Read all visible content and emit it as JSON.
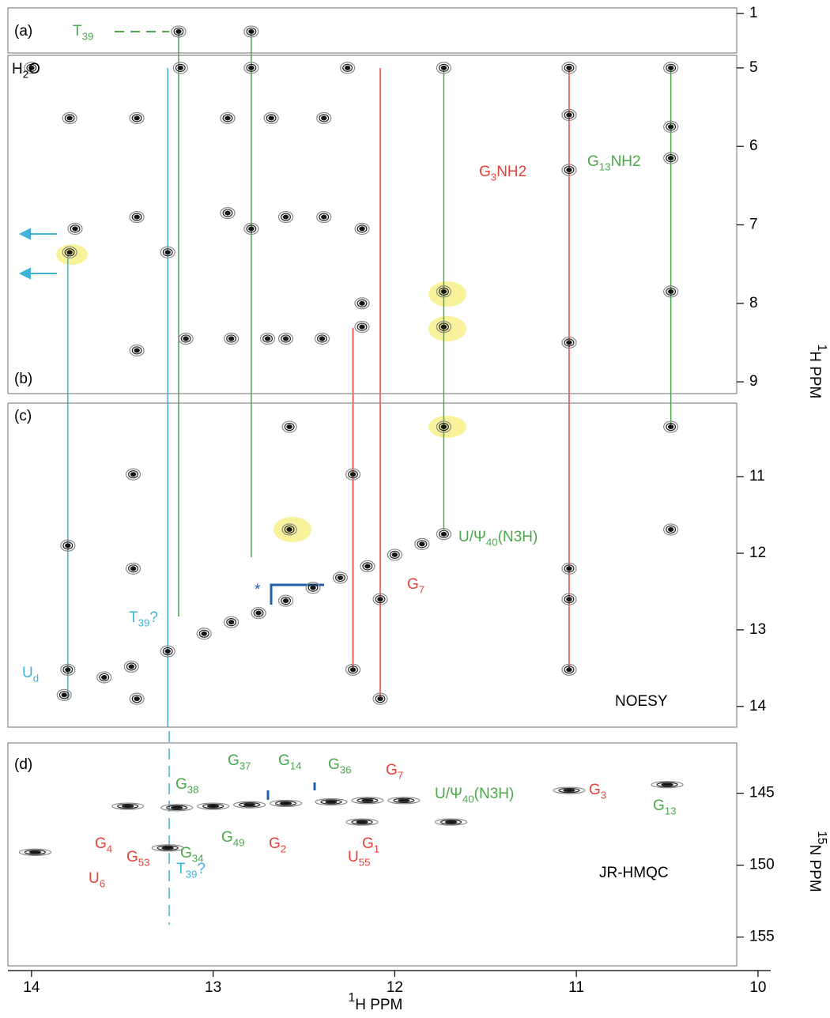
{
  "axes": {
    "x_title": {
      "sup": "1",
      "text": "H PPM"
    },
    "y1_title": {
      "sup": "1",
      "text": "H PPM"
    },
    "y2_title": {
      "sup": "15",
      "text": "N PPM"
    },
    "xlim": [
      14.13,
      9.93
    ],
    "xticks": [
      14,
      13,
      12,
      11,
      10
    ]
  },
  "panels": [
    {
      "type": "contour",
      "label": "(a)",
      "ylim": [
        0.9,
        1.7
      ],
      "yticks": [
        1
      ],
      "peaks": [
        [
          13.19,
          1.32
        ],
        [
          12.79,
          1.32
        ]
      ]
    },
    {
      "type": "contour",
      "label": "(b)",
      "ylim": [
        4.84,
        9.15
      ],
      "yticks": [
        5,
        6,
        7,
        8,
        9
      ],
      "peaks": [
        [
          14.0,
          5.0
        ],
        [
          13.18,
          5.0
        ],
        [
          12.79,
          5.0
        ],
        [
          12.26,
          5.0
        ],
        [
          11.73,
          5.0
        ],
        [
          11.04,
          5.0
        ],
        [
          10.48,
          5.0
        ],
        [
          13.79,
          5.64
        ],
        [
          13.42,
          5.64
        ],
        [
          12.92,
          5.64
        ],
        [
          12.68,
          5.64
        ],
        [
          12.39,
          5.64
        ],
        [
          11.04,
          5.6
        ],
        [
          10.48,
          5.75
        ],
        [
          11.04,
          6.3
        ],
        [
          10.48,
          6.15
        ],
        [
          13.76,
          7.05
        ],
        [
          13.42,
          6.9
        ],
        [
          12.92,
          6.85
        ],
        [
          12.79,
          7.05
        ],
        [
          12.6,
          6.9
        ],
        [
          12.39,
          6.9
        ],
        [
          12.18,
          7.05
        ],
        [
          13.79,
          7.35
        ],
        [
          13.25,
          7.35
        ],
        [
          11.73,
          7.85
        ],
        [
          10.48,
          7.85
        ],
        [
          11.73,
          8.3
        ],
        [
          12.18,
          8.0
        ],
        [
          12.18,
          8.3
        ],
        [
          13.42,
          8.6
        ],
        [
          13.15,
          8.45
        ],
        [
          12.9,
          8.45
        ],
        [
          12.7,
          8.45
        ],
        [
          12.6,
          8.45
        ],
        [
          12.4,
          8.45
        ],
        [
          11.04,
          8.5
        ]
      ]
    },
    {
      "type": "contour",
      "label": "(c)",
      "ylim": [
        10.04,
        14.27
      ],
      "yticks": [
        11,
        12,
        13,
        14
      ],
      "peaks": [
        [
          12.58,
          10.35
        ],
        [
          11.73,
          10.35
        ],
        [
          10.48,
          10.35
        ],
        [
          13.44,
          10.97
        ],
        [
          12.23,
          10.97
        ],
        [
          13.44,
          12.2
        ],
        [
          12.58,
          11.69
        ],
        [
          10.48,
          11.69
        ],
        [
          13.8,
          11.9
        ],
        [
          11.04,
          12.2
        ],
        [
          12.08,
          12.6
        ],
        [
          11.04,
          12.6
        ],
        [
          13.8,
          13.52
        ],
        [
          12.23,
          13.52
        ],
        [
          11.04,
          13.52
        ],
        [
          13.42,
          13.9
        ],
        [
          12.08,
          13.9
        ],
        [
          13.82,
          13.85
        ],
        [
          13.6,
          13.62
        ],
        [
          13.45,
          13.48
        ],
        [
          13.25,
          13.28
        ],
        [
          13.05,
          13.05
        ],
        [
          12.9,
          12.9
        ],
        [
          12.75,
          12.78
        ],
        [
          12.6,
          12.62
        ],
        [
          12.45,
          12.45
        ],
        [
          12.3,
          12.32
        ],
        [
          12.15,
          12.17
        ],
        [
          12.0,
          12.02
        ],
        [
          11.85,
          11.88
        ],
        [
          11.73,
          11.75
        ]
      ]
    },
    {
      "type": "contour",
      "label": "(d)",
      "ylim": [
        141.5,
        157.0
      ],
      "yticks": [
        145,
        150,
        155
      ],
      "peaks": [
        [
          13.47,
          145.9
        ],
        [
          13.2,
          146.0
        ],
        [
          13.0,
          145.9
        ],
        [
          12.8,
          145.8
        ],
        [
          12.6,
          145.7
        ],
        [
          12.35,
          145.6
        ],
        [
          12.15,
          145.5
        ],
        [
          11.95,
          145.5
        ],
        [
          11.04,
          144.8
        ],
        [
          10.5,
          144.4
        ],
        [
          12.18,
          147.0
        ],
        [
          11.69,
          147.0
        ],
        [
          13.25,
          148.8
        ],
        [
          13.98,
          149.1
        ]
      ]
    }
  ],
  "guides": [
    {
      "color": "#3fb4d8",
      "x": 13.8
    },
    {
      "color": "#3fb4d8",
      "x": 13.25
    },
    {
      "color": "#4aa84a",
      "x": 13.19
    },
    {
      "color": "#4aa84a",
      "x": 12.79
    },
    {
      "color": "#4aa84a",
      "x": 11.73
    },
    {
      "color": "#4aa84a",
      "x": 10.48
    },
    {
      "color": "#e8413a",
      "x": 12.23
    },
    {
      "color": "#e8413a",
      "x": 12.08
    },
    {
      "color": "#e8413a",
      "x": 11.04
    }
  ],
  "labels": [
    {
      "text": "H",
      "sub": "2",
      "tail": "O",
      "color": "#000000"
    },
    {
      "text": "T",
      "sub": "39",
      "color": "#4aa84a"
    },
    {
      "text": "G",
      "sub": "3",
      "tail": "NH2",
      "color": "#e8413a"
    },
    {
      "text": "G",
      "sub": "13",
      "tail": "NH2",
      "color": "#4aa84a"
    },
    {
      "text": "U/Ψ",
      "sub": "40",
      "tail": "(N3H)",
      "color": "#4aa84a"
    },
    {
      "text": "G",
      "sub": "7",
      "color": "#e8413a"
    },
    {
      "text": "T",
      "sub": "39",
      "tail": "?",
      "color": "#3fb4d8"
    },
    {
      "text": "U",
      "sub": "d",
      "color": "#3fb4d8"
    },
    {
      "text": "NOESY",
      "color": "#000000"
    },
    {
      "text": "G",
      "sub": "3",
      "color": "#e8413a"
    },
    {
      "text": "G",
      "sub": "13",
      "color": "#4aa84a"
    },
    {
      "text": "G",
      "sub": "38",
      "color": "#4aa84a"
    },
    {
      "text": "G",
      "sub": "37",
      "color": "#4aa84a"
    },
    {
      "text": "G",
      "sub": "14",
      "color": "#4aa84a"
    },
    {
      "text": "G",
      "sub": "36",
      "color": "#4aa84a"
    },
    {
      "text": "G",
      "sub": "7",
      "color": "#e8413a"
    },
    {
      "text": "G",
      "sub": "4",
      "color": "#e8413a"
    },
    {
      "text": "G",
      "sub": "53",
      "color": "#e8413a"
    },
    {
      "text": "G",
      "sub": "34",
      "color": "#4aa84a"
    },
    {
      "text": "G",
      "sub": "49",
      "color": "#4aa84a"
    },
    {
      "text": "G",
      "sub": "2",
      "color": "#e8413a"
    },
    {
      "text": "G",
      "sub": "1",
      "color": "#e8413a"
    },
    {
      "text": "U/Ψ",
      "sub": "40",
      "tail": "(N3H)",
      "color": "#4aa84a"
    },
    {
      "text": "U",
      "sub": "55",
      "color": "#e8413a"
    },
    {
      "text": "T",
      "sub": "39",
      "tail": "?",
      "color": "#3fb4d8"
    },
    {
      "text": "U",
      "sub": "6",
      "color": "#e8413a"
    },
    {
      "text": "JR-HMQC",
      "color": "#000000"
    },
    {
      "text": "*",
      "color": "#1f5fae"
    }
  ]
}
